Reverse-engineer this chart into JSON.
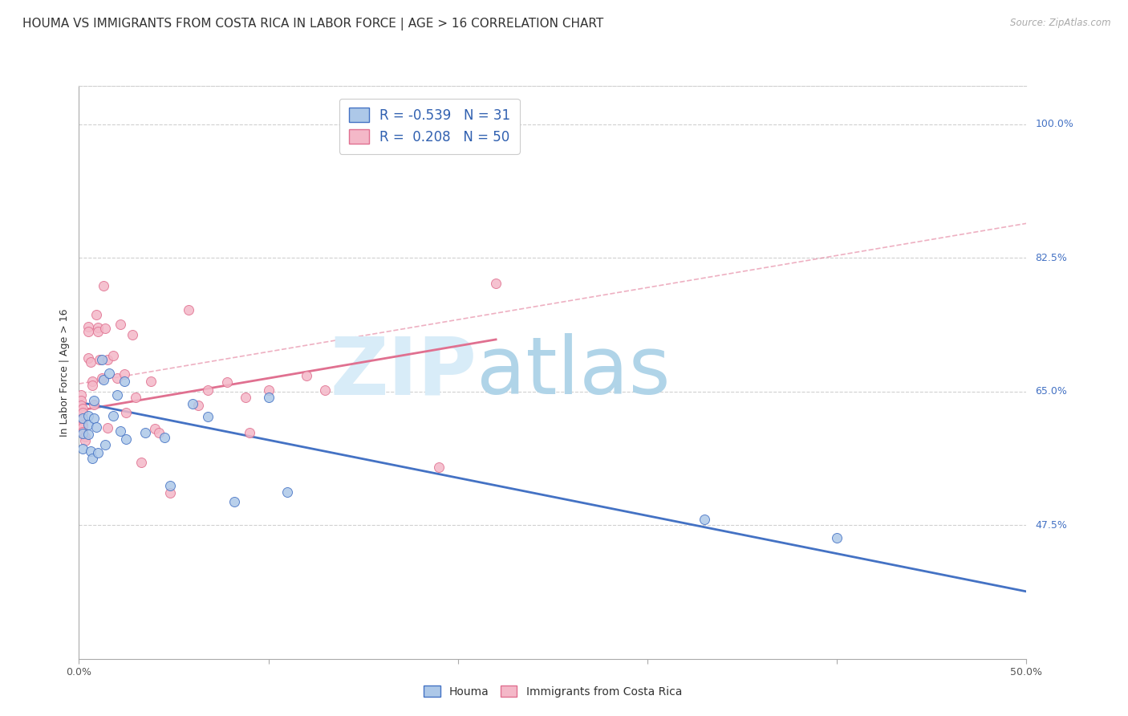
{
  "title": "HOUMA VS IMMIGRANTS FROM COSTA RICA IN LABOR FORCE | AGE > 16 CORRELATION CHART",
  "source": "Source: ZipAtlas.com",
  "ylabel": "In Labor Force | Age > 16",
  "x_min": 0.0,
  "x_max": 0.5,
  "y_min": 0.3,
  "y_max": 1.05,
  "x_ticks": [
    0.0,
    0.1,
    0.2,
    0.3,
    0.4,
    0.5
  ],
  "x_tick_labels": [
    "0.0%",
    "",
    "",
    "",
    "",
    "50.0%"
  ],
  "y_ticks": [
    0.475,
    0.65,
    0.825,
    1.0
  ],
  "y_tick_labels": [
    "47.5%",
    "65.0%",
    "82.5%",
    "100.0%"
  ],
  "legend_r_houma": "-0.539",
  "legend_n_houma": "31",
  "legend_r_cr": "0.208",
  "legend_n_cr": "50",
  "houma_color": "#adc8e8",
  "houma_line_color": "#4472c4",
  "cr_color": "#f4b8c8",
  "cr_line_color": "#e07090",
  "watermark_zip": "ZIP",
  "watermark_atlas": "atlas",
  "houma_points_x": [
    0.002,
    0.002,
    0.002,
    0.005,
    0.005,
    0.005,
    0.006,
    0.007,
    0.008,
    0.008,
    0.009,
    0.01,
    0.012,
    0.013,
    0.014,
    0.016,
    0.018,
    0.02,
    0.022,
    0.024,
    0.025,
    0.035,
    0.045,
    0.048,
    0.06,
    0.068,
    0.082,
    0.1,
    0.11,
    0.33,
    0.4
  ],
  "houma_points_y": [
    0.615,
    0.595,
    0.575,
    0.618,
    0.607,
    0.594,
    0.572,
    0.562,
    0.638,
    0.615,
    0.603,
    0.57,
    0.692,
    0.665,
    0.58,
    0.674,
    0.618,
    0.645,
    0.598,
    0.663,
    0.588,
    0.596,
    0.59,
    0.527,
    0.634,
    0.617,
    0.506,
    0.642,
    0.518,
    0.483,
    0.458
  ],
  "cr_points_x": [
    0.001,
    0.001,
    0.001,
    0.002,
    0.002,
    0.002,
    0.002,
    0.002,
    0.002,
    0.003,
    0.003,
    0.005,
    0.005,
    0.005,
    0.006,
    0.007,
    0.007,
    0.008,
    0.009,
    0.01,
    0.01,
    0.011,
    0.012,
    0.013,
    0.014,
    0.015,
    0.015,
    0.018,
    0.02,
    0.022,
    0.024,
    0.025,
    0.028,
    0.03,
    0.033,
    0.038,
    0.04,
    0.042,
    0.048,
    0.058,
    0.063,
    0.068,
    0.078,
    0.088,
    0.09,
    0.1,
    0.12,
    0.13,
    0.19,
    0.22
  ],
  "cr_points_y": [
    0.645,
    0.638,
    0.632,
    0.628,
    0.622,
    0.613,
    0.607,
    0.603,
    0.597,
    0.591,
    0.585,
    0.735,
    0.728,
    0.694,
    0.688,
    0.663,
    0.658,
    0.633,
    0.75,
    0.734,
    0.728,
    0.692,
    0.668,
    0.788,
    0.733,
    0.692,
    0.602,
    0.697,
    0.667,
    0.738,
    0.673,
    0.622,
    0.724,
    0.642,
    0.557,
    0.663,
    0.601,
    0.596,
    0.517,
    0.757,
    0.632,
    0.652,
    0.662,
    0.642,
    0.596,
    0.652,
    0.671,
    0.652,
    0.551,
    0.792
  ],
  "houma_line_x0": 0.0,
  "houma_line_x1": 0.5,
  "houma_line_y0": 0.636,
  "houma_line_y1": 0.388,
  "cr_solid_line_x0": 0.0,
  "cr_solid_line_x1": 0.22,
  "cr_solid_line_y0": 0.625,
  "cr_solid_line_y1": 0.718,
  "cr_dashed_line_x0": 0.0,
  "cr_dashed_line_x1": 0.5,
  "cr_dashed_line_y0": 0.66,
  "cr_dashed_line_y1": 0.87,
  "grid_color": "#d0d0d0",
  "background_color": "#ffffff",
  "title_fontsize": 11,
  "axis_label_fontsize": 9,
  "tick_fontsize": 9,
  "legend_fontsize": 12,
  "point_size": 75
}
